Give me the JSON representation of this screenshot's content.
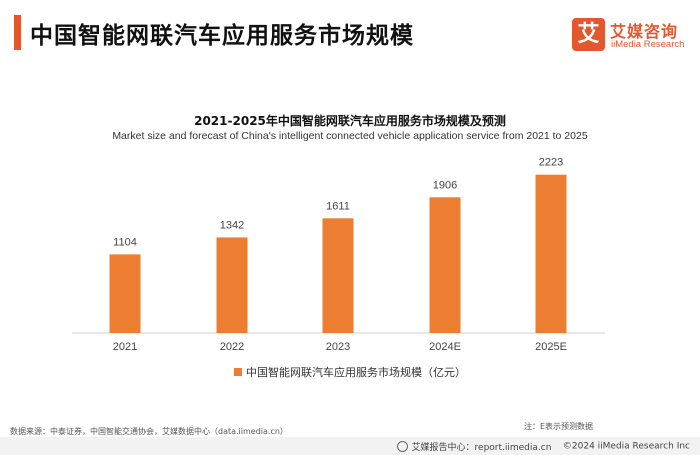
{
  "header": {
    "title": "中国智能网联汽车应用服务市场规模",
    "logo_mark": "艾",
    "logo_cn": "艾媒咨询",
    "logo_en": "iiMedia Research"
  },
  "chart_data": {
    "type": "bar",
    "title": "2021-2025年中国智能网联汽车应用服务市场规模及预测",
    "subtitle": "Market size and forecast of China's intelligent connected vehicle application service from 2021 to 2025",
    "categories": [
      "2021",
      "2022",
      "2023",
      "2024E",
      "2025E"
    ],
    "series": [
      {
        "name": "中国智能网联汽车应用服务市场规模（亿元）",
        "values": [
          1104,
          1342,
          1611,
          1906,
          2223
        ]
      }
    ],
    "ylim": [
      0,
      2500
    ],
    "grid": false,
    "legend_position": "bottom",
    "bar_color": "#ed7d31"
  },
  "note": "注：E表示预测数据",
  "source": "数据来源：中泰证券，中国智能交通协会，艾媒数据中心（data.iimedia.cn）",
  "footer": {
    "center": "艾媒报告中心：report.iimedia.cn",
    "copyright": "©2024  iiMedia Research  Inc"
  },
  "colors": {
    "accent": "#e4572e",
    "bar": "#ed7d31"
  }
}
